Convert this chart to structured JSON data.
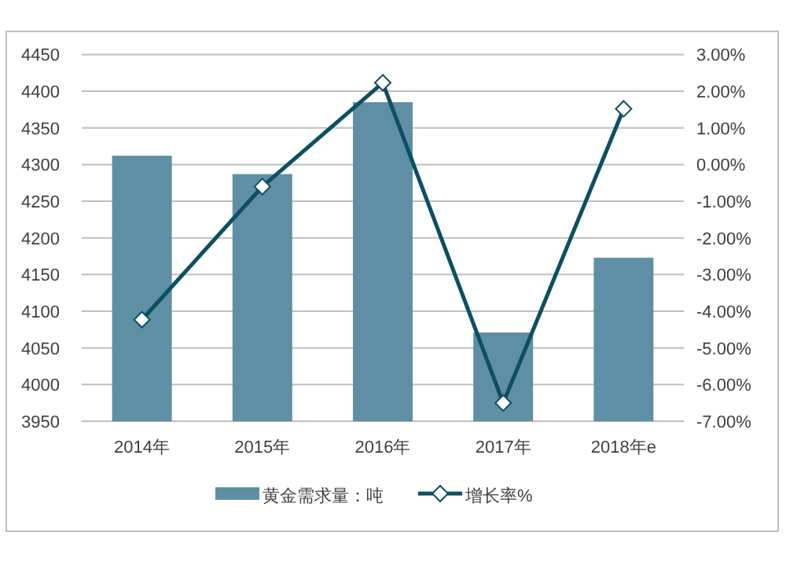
{
  "chart_data": {
    "type": "bar",
    "categories": [
      "2014年",
      "2015年",
      "2016年",
      "2017年",
      "2018年e"
    ],
    "series": [
      {
        "name": "黄金需求量：吨",
        "color": "#5f8fa5",
        "values": [
          4312,
          4287,
          4385,
          4071,
          4173
        ]
      },
      {
        "name": "增长率%",
        "type": "line",
        "axis": "y2",
        "color": "#0d4f63",
        "values": [
          -4.23,
          -0.6,
          2.23,
          -6.5,
          1.52
        ]
      }
    ],
    "ylim": [
      3950,
      4450
    ],
    "yticks": [
      3950,
      4000,
      4050,
      4100,
      4150,
      4200,
      4250,
      4300,
      4350,
      4400,
      4450
    ],
    "y2lim": [
      -7,
      3
    ],
    "y2ticks": [
      {
        "value": -7,
        "label": "-7.00%"
      },
      {
        "value": -6,
        "label": "-6.00%"
      },
      {
        "value": -5,
        "label": "-5.00%"
      },
      {
        "value": -4,
        "label": "-4.00%"
      },
      {
        "value": -3,
        "label": "-3.00%"
      },
      {
        "value": -2,
        "label": "-2.00%"
      },
      {
        "value": -1,
        "label": "-1.00%"
      },
      {
        "value": 0,
        "label": "0.00%"
      },
      {
        "value": 1,
        "label": "1.00%"
      },
      {
        "value": 2,
        "label": "2.00%"
      },
      {
        "value": 3,
        "label": "3.00%"
      }
    ],
    "grid": "y",
    "legend": "bottom",
    "marker": "diamond",
    "line_style": "solid"
  }
}
